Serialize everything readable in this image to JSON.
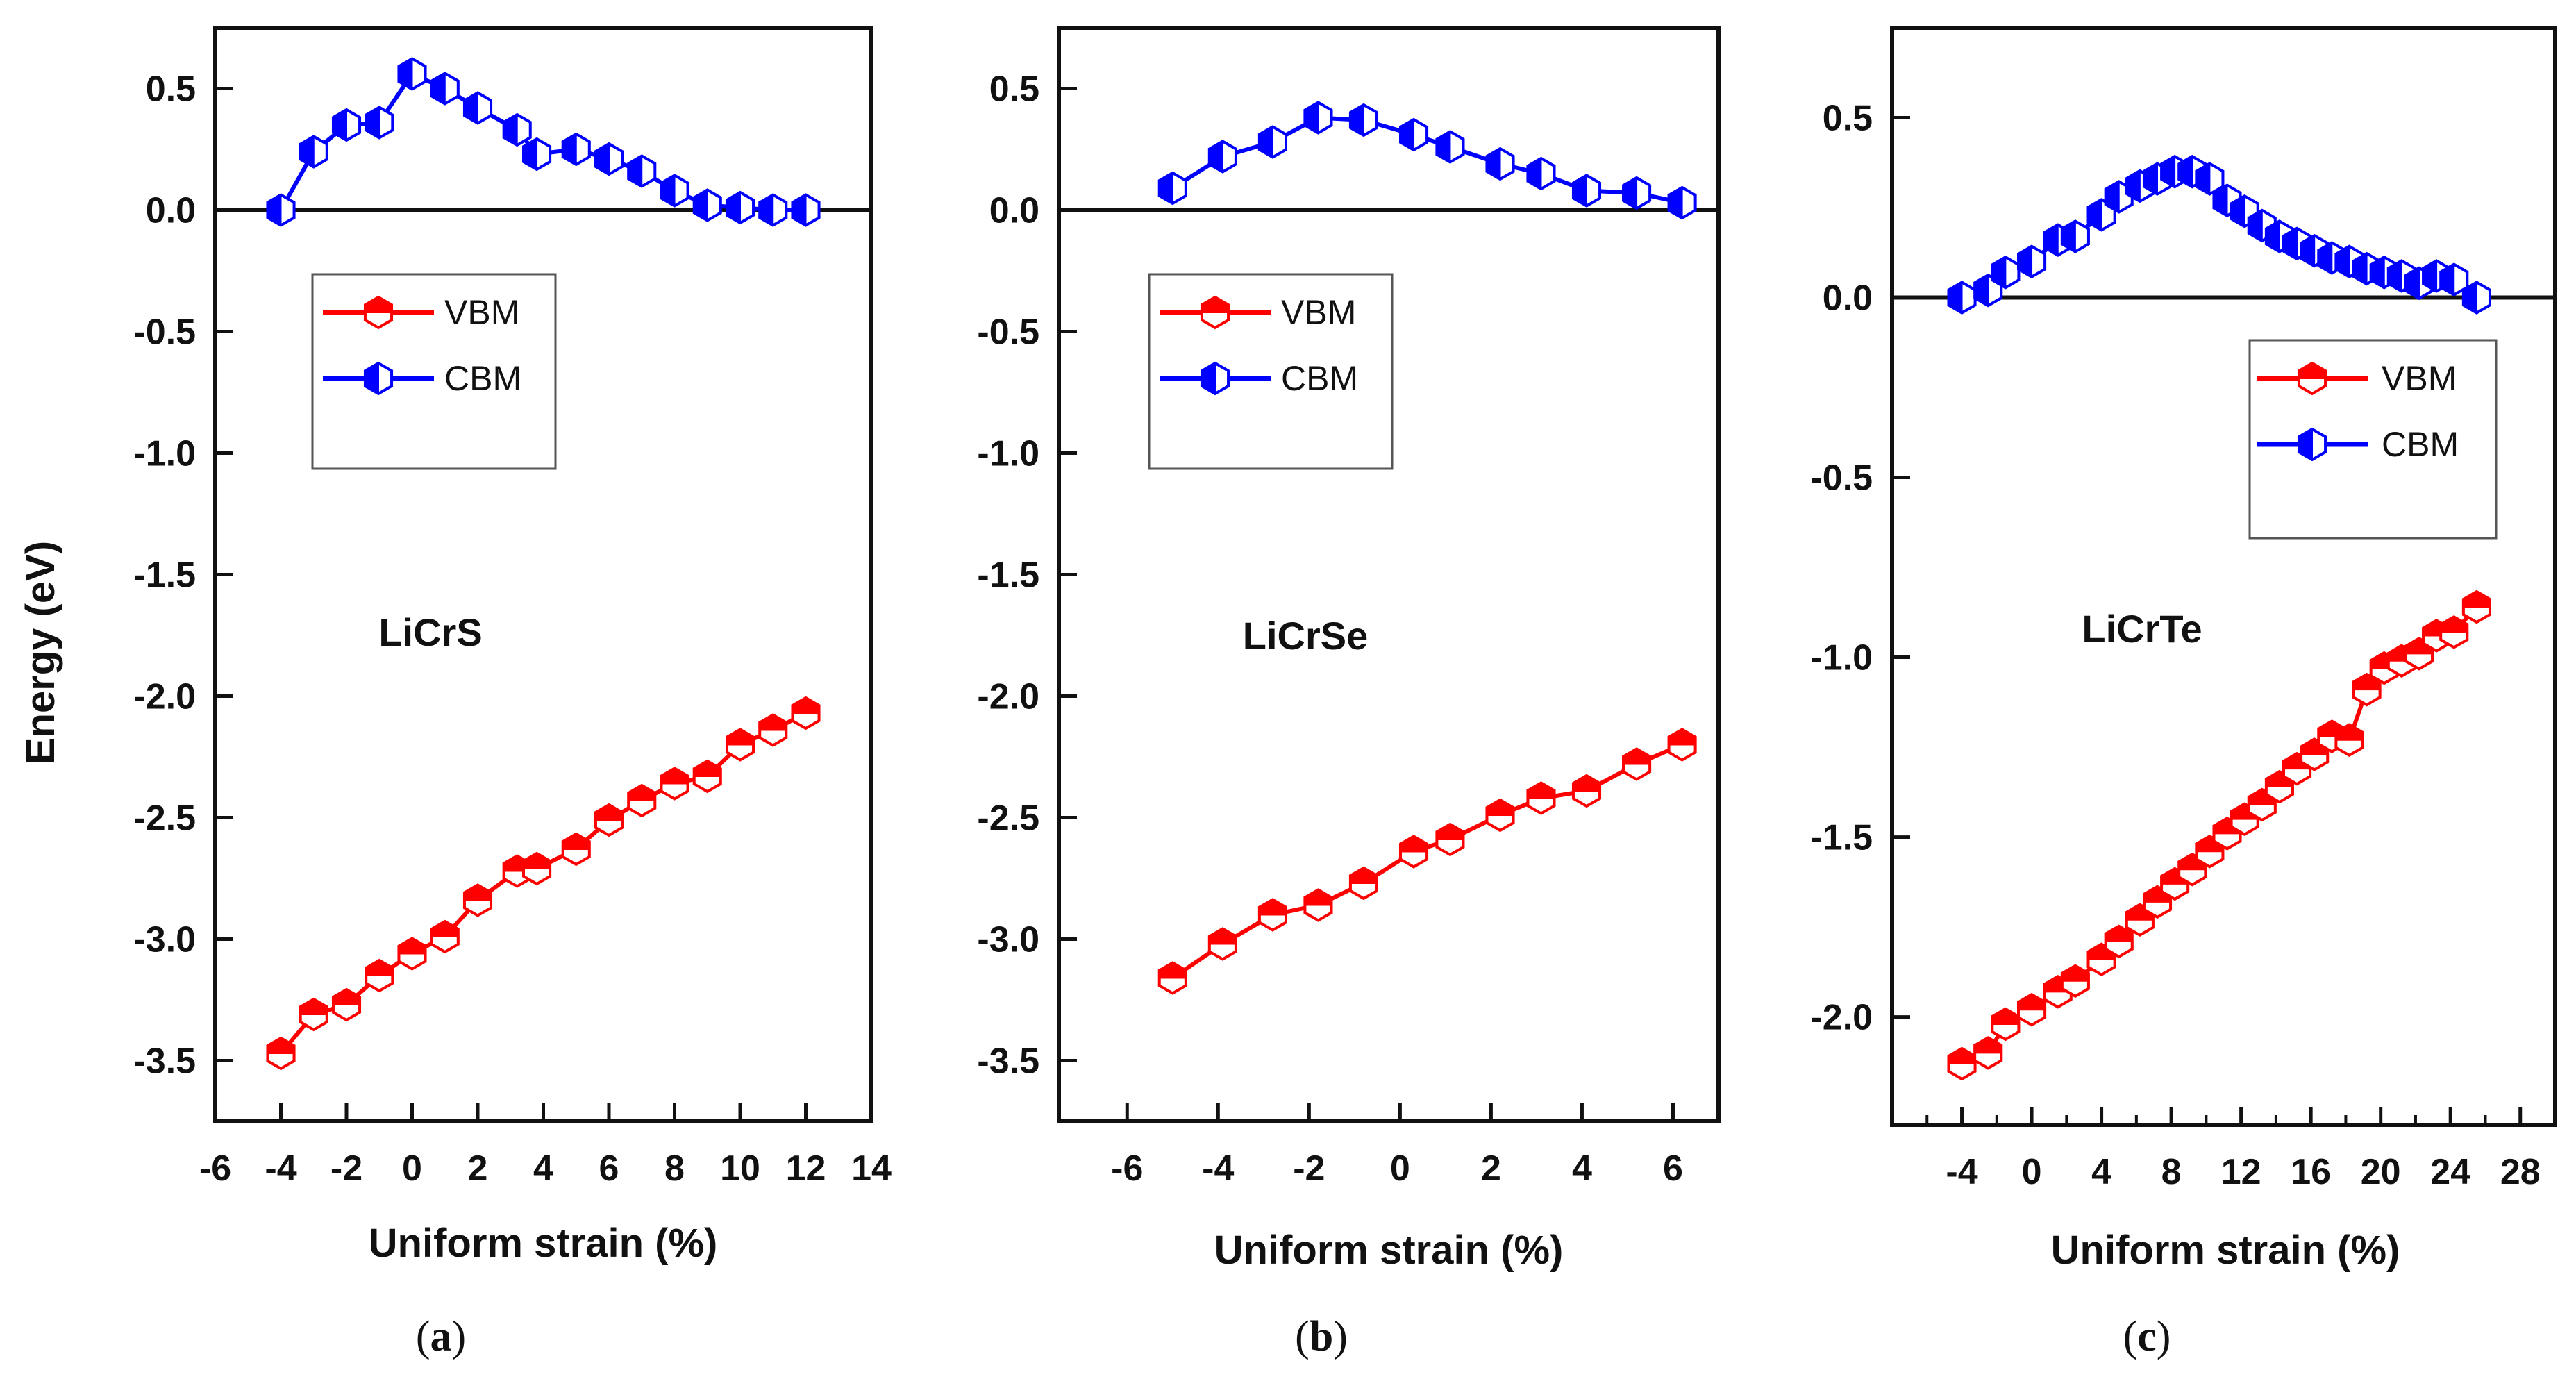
{
  "figure": {
    "ylabel": "Energy (eV)",
    "xlabel": "Uniform strain (%)"
  },
  "chart_data": [
    {
      "type": "line",
      "panel_label": "(a)",
      "panel_label_letter": "a",
      "title": "LiCrS",
      "xlabel": "Uniform strain (%)",
      "ylabel": "Energy (eV)",
      "xlim": [
        -6,
        14
      ],
      "ylim": [
        -3.75,
        0.75
      ],
      "x_ticks": [
        -6,
        -4,
        -2,
        0,
        2,
        4,
        6,
        8,
        10,
        12,
        14
      ],
      "y_ticks": [
        0.5,
        0.0,
        -0.5,
        -1.0,
        -1.5,
        -2.0,
        -2.5,
        -3.0,
        -3.5
      ],
      "y_tick_labels": [
        "0.5",
        "0.0",
        "-0.5",
        "-1.0",
        "-1.5",
        "-2.0",
        "-2.5",
        "-3.0",
        "-3.5"
      ],
      "zero_line": 0,
      "legend": [
        "VBM",
        "CBM"
      ],
      "legend_position": "upper-left",
      "series": [
        {
          "name": "VBM",
          "color": "#ff0000",
          "x": [
            -4,
            -3,
            -2,
            -1,
            0,
            1,
            2,
            3.2,
            3.8,
            5,
            6,
            7,
            8,
            9,
            10,
            11,
            12
          ],
          "y": [
            -3.47,
            -3.31,
            -3.27,
            -3.15,
            -3.06,
            -2.99,
            -2.84,
            -2.72,
            -2.71,
            -2.63,
            -2.51,
            -2.43,
            -2.36,
            -2.33,
            -2.2,
            -2.14,
            -2.07
          ]
        },
        {
          "name": "CBM",
          "color": "#0000ff",
          "x": [
            -4,
            -3,
            -2,
            -1,
            0,
            1,
            2,
            3.2,
            3.8,
            5,
            6,
            7,
            8,
            9,
            10,
            11,
            12
          ],
          "y": [
            0.0,
            0.24,
            0.35,
            0.36,
            0.56,
            0.5,
            0.42,
            0.33,
            0.23,
            0.25,
            0.21,
            0.16,
            0.08,
            0.02,
            0.01,
            0.0,
            0.0
          ]
        }
      ]
    },
    {
      "type": "line",
      "panel_label": "(b)",
      "panel_label_letter": "b",
      "title": "LiCrSe",
      "xlabel": "Uniform strain (%)",
      "ylabel": "",
      "xlim": [
        -7.5,
        7
      ],
      "ylim": [
        -3.75,
        0.75
      ],
      "x_ticks": [
        -6,
        -4,
        -2,
        0,
        2,
        4,
        6
      ],
      "y_ticks": [
        0.5,
        0.0,
        -0.5,
        -1.0,
        -1.5,
        -2.0,
        -2.5,
        -3.0,
        -3.5
      ],
      "y_tick_labels": [
        "0.5",
        "0.0",
        "-0.5",
        "-1.0",
        "-1.5",
        "-2.0",
        "-2.5",
        "-3.0",
        "-3.5"
      ],
      "zero_line": 0,
      "legend": [
        "VBM",
        "CBM"
      ],
      "legend_position": "upper-left",
      "series": [
        {
          "name": "VBM",
          "color": "#ff0000",
          "x": [
            -5,
            -3.9,
            -2.8,
            -1.8,
            -0.8,
            0.3,
            1.1,
            2.2,
            3.1,
            4.1,
            5.2,
            6.2
          ],
          "y": [
            -3.16,
            -3.02,
            -2.9,
            -2.86,
            -2.77,
            -2.64,
            -2.59,
            -2.49,
            -2.42,
            -2.39,
            -2.28,
            -2.2
          ]
        },
        {
          "name": "CBM",
          "color": "#0000ff",
          "x": [
            -5,
            -3.9,
            -2.8,
            -1.8,
            -0.8,
            0.3,
            1.1,
            2.2,
            3.1,
            4.1,
            5.2,
            6.2
          ],
          "y": [
            0.09,
            0.22,
            0.28,
            0.38,
            0.37,
            0.31,
            0.26,
            0.19,
            0.15,
            0.08,
            0.07,
            0.03
          ]
        }
      ]
    },
    {
      "type": "line",
      "panel_label": "(c)",
      "panel_label_letter": "c",
      "title": "LiCrTe",
      "xlabel": "Uniform strain (%)",
      "ylabel": "",
      "xlim": [
        -8,
        30
      ],
      "ylim": [
        -2.3,
        0.75
      ],
      "x_ticks": [
        -4,
        0,
        4,
        8,
        12,
        16,
        20,
        24,
        28
      ],
      "x_minor_ticks": [
        -6,
        -2,
        2,
        6,
        10,
        14,
        18,
        22,
        26
      ],
      "y_ticks": [
        0.5,
        0.0,
        -0.5,
        -1.0,
        -1.5,
        -2.0
      ],
      "y_tick_labels": [
        "0.5",
        "0.0",
        "-0.5",
        "-1.0",
        "-1.5",
        "-2.0"
      ],
      "zero_line": 0,
      "legend": [
        "VBM",
        "CBM"
      ],
      "legend_position": "upper-right",
      "series": [
        {
          "name": "VBM",
          "color": "#ff0000",
          "x": [
            -4,
            -2.5,
            -1.5,
            0,
            1.5,
            2.5,
            4,
            5,
            6.2,
            7.2,
            8.2,
            9.2,
            10.2,
            11.2,
            12.2,
            13.2,
            14.2,
            15.2,
            16.2,
            17.2,
            18.2,
            19.2,
            20.2,
            21.2,
            22.2,
            23.2,
            24.2,
            25.5
          ],
          "y": [
            -2.13,
            -2.1,
            -2.02,
            -1.98,
            -1.93,
            -1.9,
            -1.84,
            -1.79,
            -1.73,
            -1.68,
            -1.63,
            -1.59,
            -1.54,
            -1.49,
            -1.45,
            -1.41,
            -1.36,
            -1.31,
            -1.27,
            -1.22,
            -1.23,
            -1.09,
            -1.03,
            -1.01,
            -0.99,
            -0.94,
            -0.93,
            -0.86
          ]
        },
        {
          "name": "CBM",
          "color": "#0000ff",
          "x": [
            -4,
            -2.5,
            -1.5,
            0,
            1.5,
            2.5,
            4,
            5,
            6.2,
            7.2,
            8.2,
            9.2,
            10.2,
            11.2,
            12.2,
            13.2,
            14.2,
            15.2,
            16.2,
            17.2,
            18.2,
            19.2,
            20.2,
            21.2,
            22.2,
            23.2,
            24.2,
            25.5
          ],
          "y": [
            0.0,
            0.02,
            0.07,
            0.1,
            0.16,
            0.17,
            0.23,
            0.28,
            0.31,
            0.33,
            0.35,
            0.35,
            0.33,
            0.27,
            0.24,
            0.2,
            0.17,
            0.15,
            0.13,
            0.11,
            0.1,
            0.08,
            0.07,
            0.06,
            0.04,
            0.06,
            0.05,
            0.0
          ]
        }
      ]
    }
  ]
}
